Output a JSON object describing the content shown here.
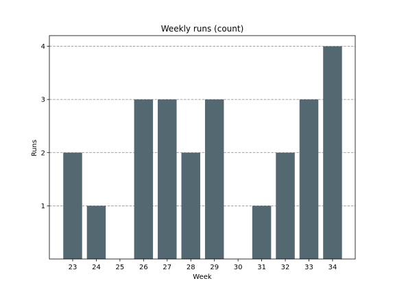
{
  "chart_data": {
    "type": "bar",
    "title": "Weekly runs (count)",
    "xlabel": "Week",
    "ylabel": "Runs",
    "categories": [
      "23",
      "24",
      "25",
      "26",
      "27",
      "28",
      "29",
      "30",
      "31",
      "32",
      "33",
      "34"
    ],
    "values": [
      2,
      1,
      0,
      3,
      3,
      2,
      3,
      0,
      1,
      2,
      3,
      4
    ],
    "yticks": [
      1,
      2,
      3,
      4
    ],
    "ylim": [
      0,
      4.2
    ],
    "grid": "y-dashed",
    "bar_color": "#546872",
    "grid_color": "#808080"
  }
}
